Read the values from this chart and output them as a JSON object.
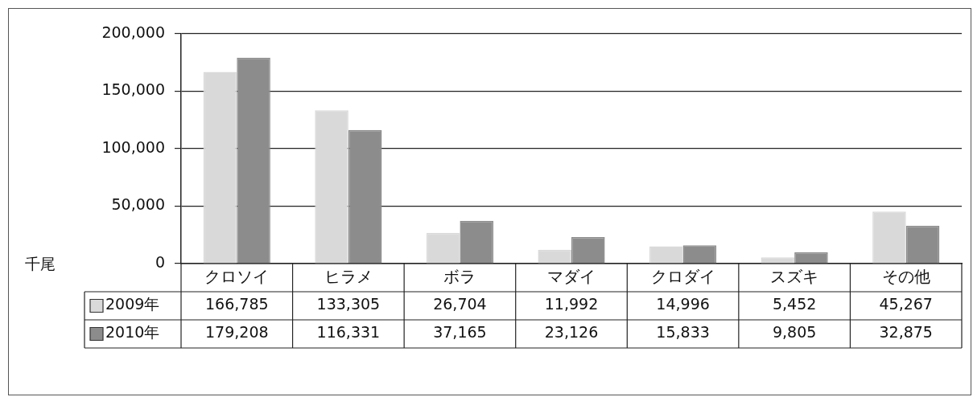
{
  "chart_data": {
    "type": "bar",
    "ylabel": "千尾",
    "categories": [
      "クロソイ",
      "ヒラメ",
      "ボラ",
      "マダイ",
      "クロダイ",
      "スズキ",
      "その他"
    ],
    "series": [
      {
        "name": "2009年",
        "color": "#d9d9d9",
        "values": [
          166785,
          133305,
          26704,
          11992,
          14996,
          5452,
          45267
        ],
        "value_labels": [
          "166,785",
          "133,305",
          "26,704",
          "11,992",
          "14,996",
          "5,452",
          "45,267"
        ]
      },
      {
        "name": "2010年",
        "color": "#8c8c8c",
        "values": [
          179208,
          116331,
          37165,
          23126,
          15833,
          9805,
          32875
        ],
        "value_labels": [
          "179,208",
          "116,331",
          "37,165",
          "23,126",
          "15,833",
          "9,805",
          "32,875"
        ]
      }
    ],
    "ylim": [
      0,
      200000
    ],
    "yticks": [
      0,
      {
        "value": 50000,
        "label": "50,000"
      },
      {
        "value": 100000,
        "label": "100,000"
      },
      {
        "value": 150000,
        "label": "150,000"
      },
      {
        "value": 200000,
        "label": "200,000"
      }
    ],
    "grid": "y",
    "legend": "bottom left"
  }
}
